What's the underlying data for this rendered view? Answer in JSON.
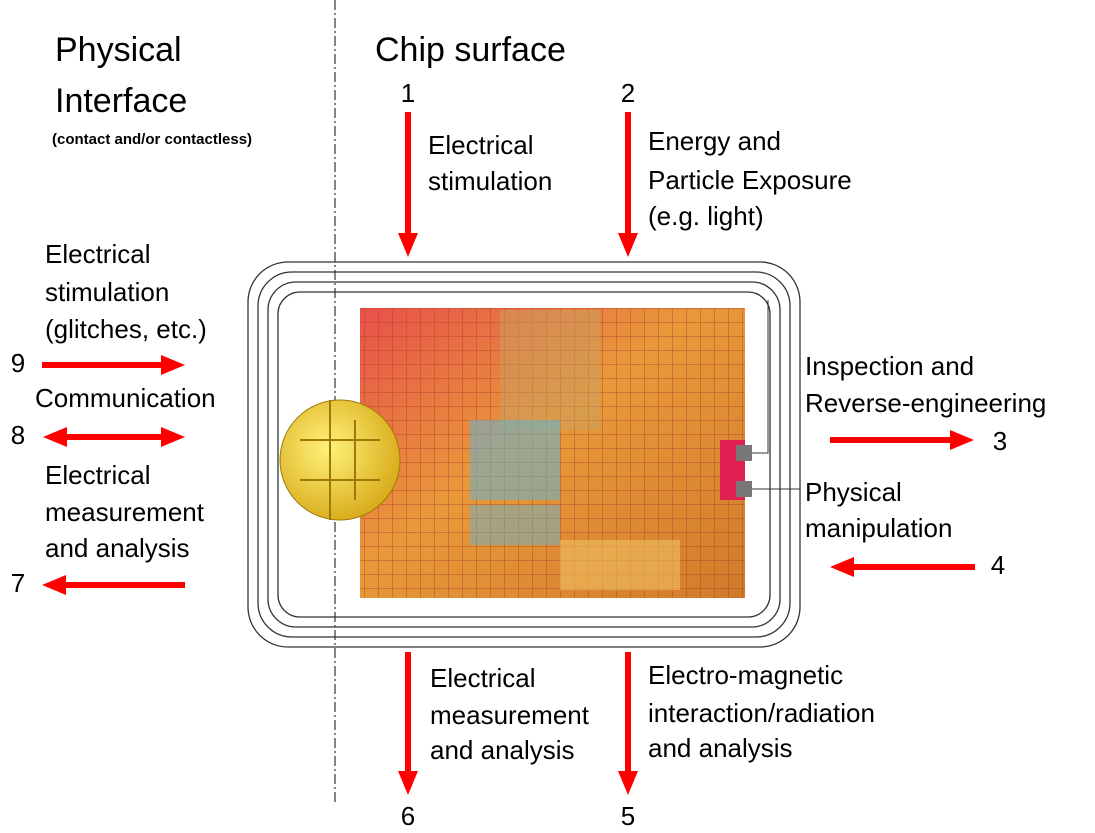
{
  "sections": {
    "left": {
      "title": [
        "Physical",
        "Interface"
      ],
      "subtitle": "(contact and/or contactless)"
    },
    "right": {
      "title": "Chip surface"
    }
  },
  "attacks": [
    {
      "number": "1",
      "label": [
        "Electrical",
        "stimulation"
      ]
    },
    {
      "number": "2",
      "label": [
        "Energy and",
        "Particle Exposure",
        "(e.g. light)"
      ]
    },
    {
      "number": "3",
      "label": [
        "Inspection and",
        "Reverse-engineering"
      ]
    },
    {
      "number": "4",
      "label": [
        "Physical",
        "manipulation"
      ]
    },
    {
      "number": "5",
      "label": [
        "Electro-magnetic",
        "interaction/radiation",
        "and analysis"
      ]
    },
    {
      "number": "6",
      "label": [
        "Electrical",
        "measurement",
        "and analysis"
      ]
    },
    {
      "number": "7",
      "label": [
        "Electrical",
        "measurement",
        "and analysis"
      ]
    },
    {
      "number": "8",
      "label": [
        "Communication"
      ]
    },
    {
      "number": "9",
      "label": [
        "Electrical",
        "stimulation",
        "(glitches, etc.)"
      ]
    }
  ]
}
